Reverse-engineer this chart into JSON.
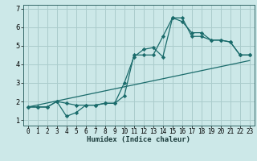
{
  "xlabel": "Humidex (Indice chaleur)",
  "bg_color": "#cce8e8",
  "grid_color": "#aacccc",
  "line_color": "#1a6b6b",
  "spine_color": "#336666",
  "xlim": [
    -0.5,
    23.5
  ],
  "ylim": [
    0.7,
    7.2
  ],
  "xticks": [
    0,
    1,
    2,
    3,
    4,
    5,
    6,
    7,
    8,
    9,
    10,
    11,
    12,
    13,
    14,
    15,
    16,
    17,
    18,
    19,
    20,
    21,
    22,
    23
  ],
  "yticks": [
    1,
    2,
    3,
    4,
    5,
    6,
    7
  ],
  "line1_x": [
    0,
    1,
    2,
    3,
    4,
    5,
    6,
    7,
    8,
    9,
    10,
    11,
    12,
    13,
    14,
    15,
    16,
    17,
    18,
    19,
    20,
    21,
    22,
    23
  ],
  "line1_y": [
    1.7,
    1.7,
    1.7,
    2.0,
    1.9,
    1.8,
    1.8,
    1.8,
    1.9,
    1.9,
    3.0,
    4.4,
    4.8,
    4.9,
    4.4,
    6.5,
    6.3,
    5.7,
    5.7,
    5.3,
    5.3,
    5.2,
    4.5,
    4.5
  ],
  "line2_x": [
    0,
    1,
    2,
    3,
    4,
    5,
    6,
    7,
    8,
    9,
    10,
    11,
    12,
    13,
    14,
    15,
    16,
    17,
    18,
    19,
    20,
    21,
    22,
    23
  ],
  "line2_y": [
    1.7,
    1.7,
    1.7,
    2.0,
    1.2,
    1.4,
    1.8,
    1.8,
    1.9,
    1.9,
    2.3,
    4.5,
    4.5,
    4.5,
    5.5,
    6.5,
    6.5,
    5.5,
    5.5,
    5.3,
    5.3,
    5.2,
    4.5,
    4.5
  ],
  "line3_x": [
    0,
    23
  ],
  "line3_y": [
    1.7,
    4.2
  ],
  "tick_fontsize": 5.5,
  "xlabel_fontsize": 6.5
}
